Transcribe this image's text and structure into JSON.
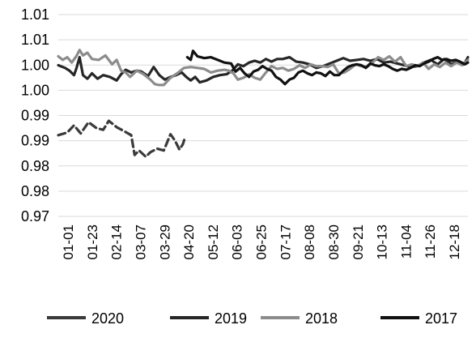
{
  "chart_data": {
    "type": "line",
    "title": "",
    "xlabel": "",
    "ylabel": "",
    "grid": "horizontal",
    "legend": "bottom",
    "ylim": [
      0.9675,
      1.0125
    ],
    "y_ticks": [
      "0.97",
      "0.98",
      "0.98",
      "0.99",
      "0.99",
      "1.00",
      "1.00",
      "1.01",
      "1.01"
    ],
    "x_ticks": [
      "01-01",
      "01-23",
      "02-14",
      "03-07",
      "03-29",
      "04-20",
      "05-12",
      "06-03",
      "06-25",
      "07-17",
      "08-08",
      "08-30",
      "09-21",
      "10-13",
      "11-04",
      "11-26",
      "12-18"
    ],
    "series": [
      {
        "name": "2020",
        "color": "#3a3a3a",
        "dash": "9,5",
        "points": [
          [
            0,
            0.9856
          ],
          [
            8,
            0.9862
          ],
          [
            14,
            0.9878
          ],
          [
            20,
            0.986
          ],
          [
            27,
            0.9885
          ],
          [
            34,
            0.9872
          ],
          [
            40,
            0.9868
          ],
          [
            45,
            0.9888
          ],
          [
            52,
            0.9874
          ],
          [
            58,
            0.9866
          ],
          [
            65,
            0.9856
          ],
          [
            68,
            0.9812
          ],
          [
            72,
            0.9822
          ],
          [
            78,
            0.9808
          ],
          [
            82,
            0.9818
          ],
          [
            88,
            0.9826
          ],
          [
            94,
            0.9822
          ],
          [
            100,
            0.9858
          ],
          [
            104,
            0.9844
          ],
          [
            108,
            0.9824
          ],
          [
            111,
            0.9836
          ],
          [
            113,
            0.9852
          ]
        ]
      },
      {
        "name": "2019",
        "color": "#262626",
        "dash": "",
        "points": [
          [
            0,
            1.0012
          ],
          [
            6,
            1.0006
          ],
          [
            10,
            1.0
          ],
          [
            14,
            0.999
          ],
          [
            16,
            1.0004
          ],
          [
            19,
            1.003
          ],
          [
            22,
            0.999
          ],
          [
            26,
            0.9982
          ],
          [
            30,
            0.9994
          ],
          [
            35,
            0.9982
          ],
          [
            40,
            0.999
          ],
          [
            46,
            0.9986
          ],
          [
            52,
            0.9978
          ],
          [
            56,
            0.9992
          ],
          [
            60,
            1.0002
          ],
          [
            65,
            0.9996
          ],
          [
            70,
            1.0
          ],
          [
            74,
            0.9998
          ],
          [
            80,
            0.9988
          ],
          [
            85,
            1.0008
          ],
          [
            90,
            0.999
          ],
          [
            95,
            0.998
          ],
          [
            100,
            0.9986
          ],
          [
            105,
            0.999
          ],
          [
            110,
            0.9996
          ],
          [
            114,
            0.9986
          ],
          [
            118,
            0.9978
          ],
          [
            122,
            0.9986
          ],
          [
            126,
            0.9974
          ],
          [
            132,
            0.9978
          ],
          [
            138,
            0.9986
          ],
          [
            144,
            0.999
          ],
          [
            150,
            0.9992
          ],
          [
            155,
            1.0
          ],
          [
            160,
            1.0014
          ],
          [
            165,
            1.001
          ],
          [
            170,
            1.0018
          ],
          [
            175,
            1.0022
          ],
          [
            180,
            1.0018
          ],
          [
            185,
            1.0026
          ],
          [
            190,
            1.002
          ],
          [
            195,
            1.0026
          ],
          [
            200,
            1.0026
          ],
          [
            206,
            1.003
          ],
          [
            212,
            1.002
          ],
          [
            218,
            1.0018
          ],
          [
            224,
            1.0014
          ],
          [
            230,
            1.0006
          ],
          [
            236,
            1.001
          ],
          [
            242,
            1.0016
          ],
          [
            248,
            1.0022
          ],
          [
            254,
            1.0028
          ],
          [
            260,
            1.0022
          ],
          [
            266,
            1.0024
          ],
          [
            272,
            1.0026
          ],
          [
            278,
            1.0022
          ],
          [
            284,
            1.0026
          ],
          [
            290,
            1.0018
          ],
          [
            296,
            1.002
          ],
          [
            302,
            1.0016
          ],
          [
            308,
            1.0012
          ],
          [
            314,
            1.0008
          ],
          [
            320,
            1.001
          ],
          [
            326,
            1.0018
          ],
          [
            332,
            1.0024
          ],
          [
            338,
            1.0014
          ],
          [
            344,
            1.0026
          ],
          [
            350,
            1.0014
          ],
          [
            356,
            1.002
          ],
          [
            362,
            1.0016
          ],
          [
            365,
            1.003
          ]
        ]
      },
      {
        "name": "2018",
        "color": "#8c8c8c",
        "dash": "",
        "points": [
          [
            0,
            1.0032
          ],
          [
            4,
            1.0024
          ],
          [
            8,
            1.003
          ],
          [
            12,
            1.0018
          ],
          [
            16,
            1.0032
          ],
          [
            19,
            1.0046
          ],
          [
            22,
            1.0034
          ],
          [
            26,
            1.004
          ],
          [
            30,
            1.0026
          ],
          [
            36,
            1.0024
          ],
          [
            42,
            1.0034
          ],
          [
            48,
            1.0014
          ],
          [
            52,
            1.0024
          ],
          [
            56,
            1.0
          ],
          [
            60,
            0.9996
          ],
          [
            64,
            0.9986
          ],
          [
            70,
            1.0
          ],
          [
            76,
            0.9992
          ],
          [
            82,
            0.998
          ],
          [
            86,
            0.997
          ],
          [
            90,
            0.9968
          ],
          [
            94,
            0.9968
          ],
          [
            100,
            0.9984
          ],
          [
            106,
            0.9994
          ],
          [
            112,
            1.0006
          ],
          [
            118,
            1.0008
          ],
          [
            124,
            1.0006
          ],
          [
            130,
            1.0004
          ],
          [
            136,
            0.9996
          ],
          [
            142,
            1.0
          ],
          [
            148,
            1.0002
          ],
          [
            152,
            1.0
          ],
          [
            156,
            0.9994
          ],
          [
            160,
            0.998
          ],
          [
            165,
            0.9984
          ],
          [
            170,
            0.9992
          ],
          [
            175,
            0.9984
          ],
          [
            180,
            0.998
          ],
          [
            185,
            0.9996
          ],
          [
            190,
            1.001
          ],
          [
            195,
            1.0004
          ],
          [
            200,
            1.0006
          ],
          [
            205,
            1.0
          ],
          [
            210,
            1.0004
          ],
          [
            215,
            1.0012
          ],
          [
            220,
            1.0006
          ],
          [
            225,
            1.0014
          ],
          [
            230,
            1.001
          ],
          [
            235,
            1.001
          ],
          [
            240,
            1.0008
          ],
          [
            245,
            1.0014
          ],
          [
            250,
            0.9994
          ],
          [
            255,
            0.9996
          ],
          [
            260,
            1.0004
          ],
          [
            265,
            1.0014
          ],
          [
            270,
            1.001
          ],
          [
            275,
            1.0008
          ],
          [
            280,
            1.0018
          ],
          [
            285,
            1.003
          ],
          [
            290,
            1.0024
          ],
          [
            295,
            1.0032
          ],
          [
            300,
            1.002
          ],
          [
            305,
            1.003
          ],
          [
            310,
            1.001
          ],
          [
            315,
            1.0014
          ],
          [
            320,
            1.001
          ],
          [
            325,
            1.0018
          ],
          [
            330,
            1.0004
          ],
          [
            335,
            1.0014
          ],
          [
            340,
            1.0008
          ],
          [
            345,
            1.0018
          ],
          [
            350,
            1.001
          ],
          [
            355,
            1.0018
          ],
          [
            360,
            1.0012
          ],
          [
            365,
            1.0024
          ]
        ]
      },
      {
        "name": "2017",
        "color": "#111111",
        "dash": "",
        "points": [
          [
            115,
            1.003
          ],
          [
            118,
            1.0024
          ],
          [
            120,
            1.0044
          ],
          [
            124,
            1.0032
          ],
          [
            130,
            1.0028
          ],
          [
            136,
            1.003
          ],
          [
            142,
            1.0024
          ],
          [
            148,
            1.0018
          ],
          [
            154,
            1.0016
          ],
          [
            158,
            0.9998
          ],
          [
            162,
            1.0006
          ],
          [
            166,
            0.9994
          ],
          [
            170,
            0.9986
          ],
          [
            174,
            0.9998
          ],
          [
            178,
            1.0002
          ],
          [
            182,
            1.001
          ],
          [
            186,
            1.0004
          ],
          [
            190,
            1.0
          ],
          [
            194,
            0.9986
          ],
          [
            198,
            0.998
          ],
          [
            202,
            0.997
          ],
          [
            206,
            0.998
          ],
          [
            210,
            0.9984
          ],
          [
            214,
            0.9996
          ],
          [
            218,
            1.0
          ],
          [
            222,
            0.9994
          ],
          [
            226,
            0.999
          ],
          [
            230,
            0.9996
          ],
          [
            234,
            0.9994
          ],
          [
            238,
            0.9988
          ],
          [
            242,
            0.9998
          ],
          [
            246,
            0.999
          ],
          [
            250,
            0.999
          ],
          [
            254,
            1.0
          ],
          [
            258,
            1.0008
          ],
          [
            262,
            1.0012
          ],
          [
            266,
            1.0014
          ],
          [
            270,
            1.0012
          ],
          [
            274,
            1.0006
          ],
          [
            278,
            1.0016
          ],
          [
            282,
            1.0012
          ],
          [
            286,
            1.001
          ],
          [
            290,
            1.0014
          ],
          [
            294,
            1.001
          ],
          [
            298,
            1.0004
          ],
          [
            302,
            1.0
          ],
          [
            306,
            1.0004
          ],
          [
            310,
            1.0002
          ],
          [
            314,
            1.0006
          ],
          [
            318,
            1.0012
          ],
          [
            322,
            1.001
          ],
          [
            326,
            1.0016
          ],
          [
            330,
            1.002
          ],
          [
            334,
            1.0026
          ],
          [
            338,
            1.003
          ],
          [
            342,
            1.0024
          ],
          [
            346,
            1.0026
          ],
          [
            350,
            1.0022
          ],
          [
            354,
            1.0024
          ],
          [
            358,
            1.002
          ],
          [
            362,
            1.0014
          ],
          [
            365,
            1.0018
          ]
        ]
      }
    ]
  }
}
